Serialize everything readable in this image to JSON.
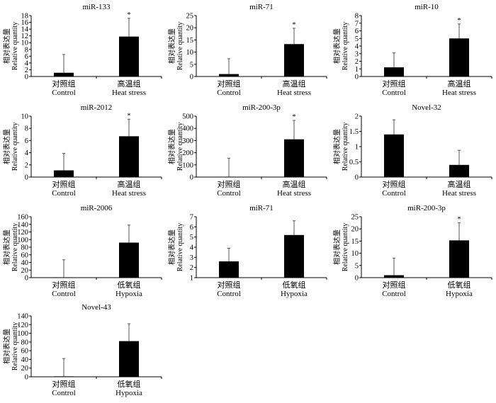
{
  "chart_data": [
    {
      "type": "bar",
      "title": "miR-133",
      "ylabel_cn": "相对表达量",
      "ylabel": "Relative quantity",
      "categories_cn": [
        "对照组",
        "高温组"
      ],
      "categories": [
        "Control",
        "Heat stress"
      ],
      "values": [
        1.1,
        11.8
      ],
      "error_upper": [
        6.5,
        17.2
      ],
      "significance": [
        "",
        "*"
      ],
      "ylim": [
        0,
        18
      ],
      "yticks": [
        0,
        2,
        4,
        6,
        8,
        10,
        12,
        14,
        16,
        18
      ]
    },
    {
      "type": "bar",
      "title": "miR-71",
      "ylabel_cn": "相对表达量",
      "ylabel": "Relative quantity",
      "categories_cn": [
        "对照组",
        "高温组"
      ],
      "categories": [
        "Control",
        "Heat stress"
      ],
      "values": [
        1.0,
        13.3
      ],
      "error_upper": [
        7.3,
        19.8
      ],
      "significance": [
        "",
        "*"
      ],
      "ylim": [
        0,
        25
      ],
      "yticks": [
        0,
        5,
        10,
        15,
        20,
        25
      ]
    },
    {
      "type": "bar",
      "title": "miR-10",
      "ylabel_cn": "相对表达量",
      "ylabel": "Relative quantity",
      "categories_cn": [
        "对照组",
        "高温组"
      ],
      "categories": [
        "Control",
        "Heat stress"
      ],
      "values": [
        1.2,
        5.0
      ],
      "error_upper": [
        3.1,
        6.9
      ],
      "significance": [
        "",
        "*"
      ],
      "ylim": [
        0,
        8
      ],
      "yticks": [
        0,
        1,
        2,
        3,
        4,
        5,
        6,
        7,
        8
      ]
    },
    {
      "type": "bar",
      "title": "miR-2012",
      "ylabel_cn": "相对表达量",
      "ylabel": "Relative quantity",
      "categories_cn": [
        "对照组",
        "高温组"
      ],
      "categories": [
        "Control",
        "Heat stress"
      ],
      "values": [
        1.1,
        6.7
      ],
      "error_upper": [
        3.9,
        9.5
      ],
      "significance": [
        "",
        "*"
      ],
      "ylim": [
        0,
        10
      ],
      "yticks": [
        0,
        2,
        4,
        6,
        8,
        10
      ]
    },
    {
      "type": "bar",
      "title": "miR-200-3p",
      "ylabel_cn": "相对表达量",
      "ylabel": "Relative quantity",
      "categories_cn": [
        "对照组",
        "高温组"
      ],
      "categories": [
        "Control",
        "Heat stress"
      ],
      "values": [
        3,
        310
      ],
      "error_upper": [
        155,
        465
      ],
      "significance": [
        "",
        "*"
      ],
      "ylim": [
        0,
        500
      ],
      "yticks": [
        0,
        100,
        200,
        300,
        400,
        500
      ]
    },
    {
      "type": "bar",
      "title": "Novel-32",
      "ylabel_cn": "相对表达量",
      "ylabel": "Relative quantity",
      "categories_cn": [
        "对照组",
        "高温组"
      ],
      "categories": [
        "Control",
        "Heat stress"
      ],
      "values": [
        1.4,
        0.4
      ],
      "error_upper": [
        1.88,
        0.88
      ],
      "significance": [
        "",
        ""
      ],
      "ylim": [
        0,
        2
      ],
      "yticks": [
        0,
        0.5,
        1,
        1.5,
        2
      ]
    },
    {
      "type": "bar",
      "title": "miR-2006",
      "ylabel_cn": "相对表达量",
      "ylabel": "Relative quantity",
      "categories_cn": [
        "对照组",
        "低氧组"
      ],
      "categories": [
        "Control",
        "Hypoxia"
      ],
      "values": [
        1,
        92
      ],
      "error_upper": [
        47,
        138
      ],
      "significance": [
        "",
        ""
      ],
      "ylim": [
        0,
        160
      ],
      "yticks": [
        0,
        20,
        40,
        60,
        80,
        100,
        120,
        140,
        160
      ]
    },
    {
      "type": "bar",
      "title": "miR-71",
      "ylabel_cn": "相对表达量",
      "ylabel": "Relative quantity",
      "categories_cn": [
        "对照组",
        "低氧组"
      ],
      "categories": [
        "Control",
        "Hypoxia"
      ],
      "values": [
        2.6,
        5.2
      ],
      "error_upper": [
        3.9,
        6.6
      ],
      "significance": [
        "",
        ""
      ],
      "ylim": [
        1,
        7
      ],
      "yticks": [
        1,
        2,
        3,
        4,
        5,
        6,
        7
      ]
    },
    {
      "type": "bar",
      "title": "miR-200-3p",
      "ylabel_cn": "相对表达量",
      "ylabel": "Relative quantity",
      "categories_cn": [
        "对照组",
        "低氧组"
      ],
      "categories": [
        "Control",
        "Hypoxia"
      ],
      "values": [
        1,
        15.3
      ],
      "error_upper": [
        8,
        22.5
      ],
      "significance": [
        "",
        "*"
      ],
      "ylim": [
        0,
        25
      ],
      "yticks": [
        0,
        5,
        10,
        15,
        20,
        25
      ]
    },
    {
      "type": "bar",
      "title": "Novel-43",
      "ylabel_cn": "相对表达量",
      "ylabel": "Relative quantity",
      "categories_cn": [
        "对照组",
        "低氧组"
      ],
      "categories": [
        "Control",
        "Hypoxia"
      ],
      "values": [
        1,
        82
      ],
      "error_upper": [
        42,
        122
      ],
      "significance": [
        "",
        ""
      ],
      "ylim": [
        0,
        140
      ],
      "yticks": [
        0,
        20,
        40,
        60,
        80,
        100,
        120,
        140
      ]
    }
  ]
}
